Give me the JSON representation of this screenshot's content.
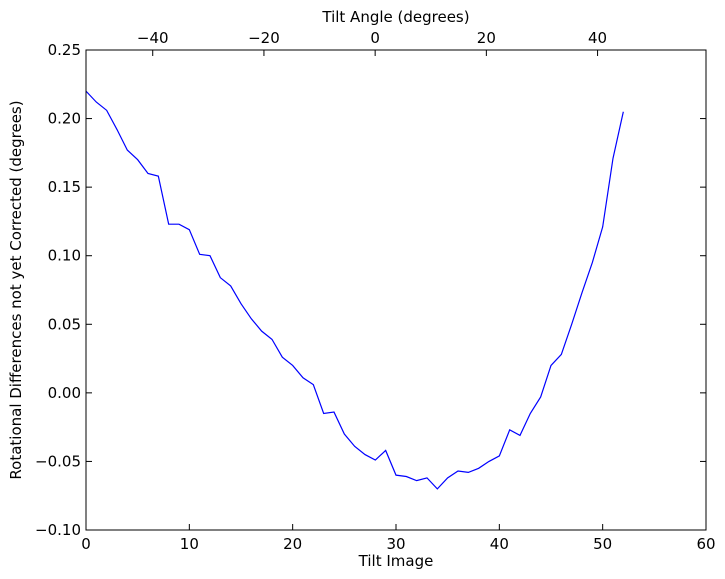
{
  "chart_data": {
    "type": "line",
    "title": "",
    "xlabel": "Tilt Image",
    "ylabel": "Rotational Differences not yet Corrected (degrees)",
    "top_xlabel": "Tilt Angle (degrees)",
    "xlim": [
      0,
      60
    ],
    "ylim": [
      -0.1,
      0.25
    ],
    "top_xlim": [
      -52,
      59.5
    ],
    "x_ticks": [
      0,
      10,
      20,
      30,
      40,
      50,
      60
    ],
    "x_tick_labels": [
      "0",
      "10",
      "20",
      "30",
      "40",
      "50",
      "60"
    ],
    "y_ticks": [
      -0.1,
      -0.05,
      0.0,
      0.05,
      0.1,
      0.15,
      0.2,
      0.25
    ],
    "y_tick_labels": [
      "−0.10",
      "−0.05",
      "0.00",
      "0.05",
      "0.10",
      "0.15",
      "0.20",
      "0.25"
    ],
    "top_x_ticks": [
      -40,
      -20,
      0,
      20,
      40
    ],
    "top_x_tick_labels": [
      "−40",
      "−20",
      "0",
      "20",
      "40"
    ],
    "grid": false,
    "legend": "none",
    "line_color": "#0000ff",
    "series": [
      {
        "x": [
          0,
          1,
          2,
          3,
          4,
          5,
          6,
          7,
          8,
          9,
          10,
          11,
          12,
          13,
          14,
          15,
          16,
          17,
          18,
          19,
          20,
          21,
          22,
          23,
          24,
          25,
          26,
          27,
          28,
          29,
          30,
          31,
          32,
          33,
          34,
          35,
          36,
          37,
          38,
          39,
          40,
          41,
          42,
          43,
          44,
          45,
          46,
          47,
          48,
          49,
          50,
          51,
          52
        ],
        "values": [
          0.22,
          0.212,
          0.206,
          0.192,
          0.177,
          0.17,
          0.16,
          0.158,
          0.123,
          0.123,
          0.119,
          0.101,
          0.1,
          0.084,
          0.078,
          0.065,
          0.054,
          0.045,
          0.039,
          0.026,
          0.02,
          0.011,
          0.006,
          -0.015,
          -0.014,
          -0.03,
          -0.039,
          -0.045,
          -0.049,
          -0.042,
          -0.06,
          -0.061,
          -0.064,
          -0.062,
          -0.07,
          -0.062,
          -0.057,
          -0.058,
          -0.055,
          -0.05,
          -0.046,
          -0.027,
          -0.031,
          -0.015,
          -0.003,
          0.02,
          0.028,
          0.05,
          0.073,
          0.095,
          0.121,
          0.171,
          0.205
        ]
      }
    ]
  }
}
